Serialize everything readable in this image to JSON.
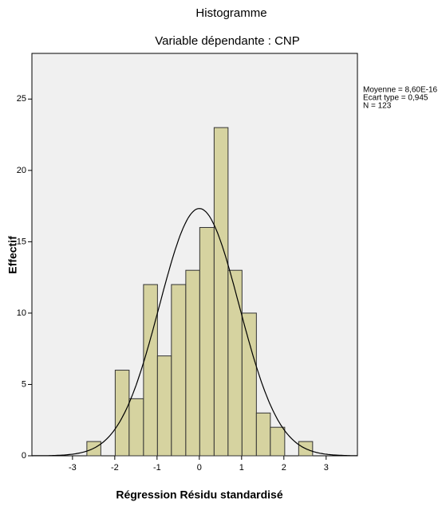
{
  "chart_data": {
    "type": "histogram",
    "title": "Histogramme",
    "subtitle": "Variable dépendante : CNP",
    "x_label": "Régression Résidu standardisé",
    "y_label": "Effectif",
    "bins": [
      -2.66,
      -2.33,
      -1.99,
      -1.66,
      -1.32,
      -0.99,
      -0.66,
      -0.32,
      0.01,
      0.35,
      0.68,
      1.01,
      1.35,
      1.68,
      2.02,
      2.35,
      2.68
    ],
    "values": [
      1,
      0,
      6,
      4,
      12,
      7,
      12,
      13,
      16,
      23,
      13,
      10,
      3,
      2,
      0,
      1
    ],
    "color": "#d6d3a0",
    "edge_color": "#333333",
    "curve_color": "#000000",
    "stats": [
      {
        "value": 8.6e-16,
        "label": "Moyenne = 8,60E-16"
      },
      {
        "value": 0.945,
        "label": "Ecart type = 0,945"
      },
      {
        "value": 123,
        "label": "N = 123"
      }
    ],
    "xlim": [
      -3.96,
      3.74
    ],
    "ylim": [
      0,
      28.2
    ],
    "xticks": [
      -3,
      -2,
      -1,
      0,
      1,
      2,
      3
    ],
    "yticks": [
      0,
      5,
      10,
      15,
      20,
      25
    ]
  }
}
